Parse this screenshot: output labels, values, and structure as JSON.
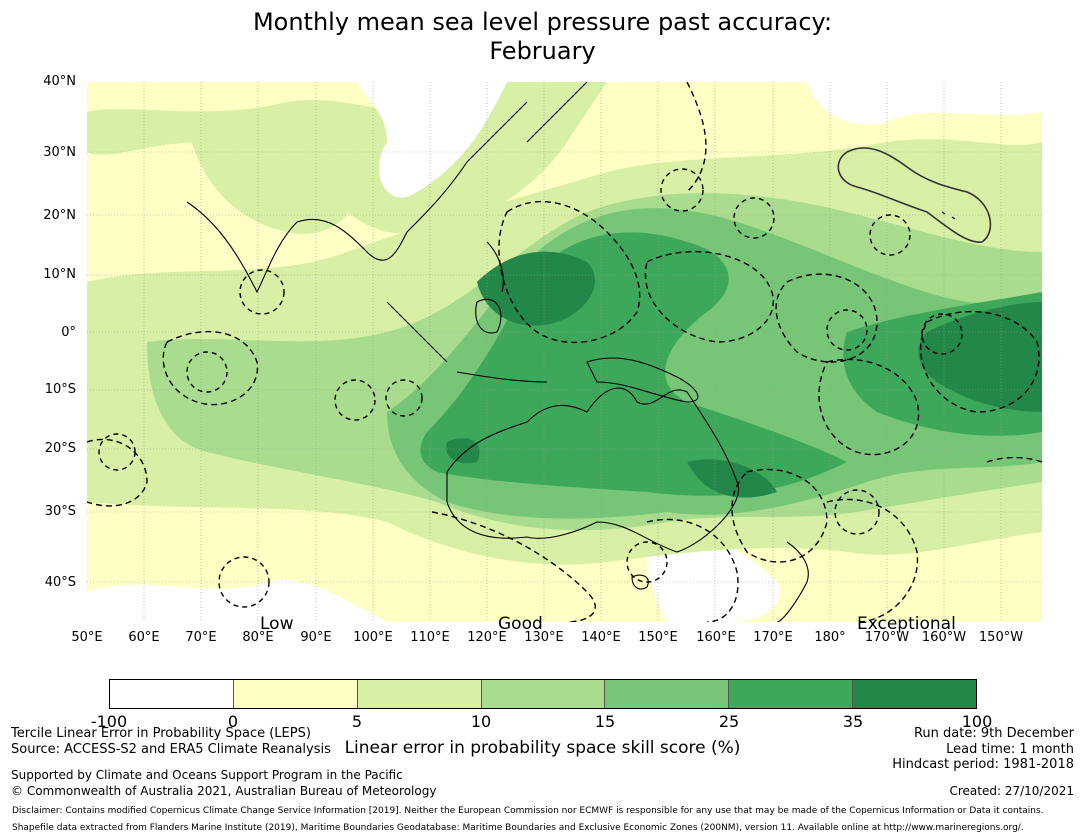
{
  "title": {
    "line1": "Monthly mean sea level pressure past accuracy:",
    "line2": "February"
  },
  "map": {
    "lat_labels": [
      "40°N",
      "30°N",
      "20°N",
      "10°N",
      "0°",
      "10°S",
      "20°S",
      "30°S",
      "40°S"
    ],
    "lon_labels": [
      "50°E",
      "60°E",
      "70°E",
      "80°E",
      "90°E",
      "100°E",
      "110°E",
      "120°E",
      "130°E",
      "140°E",
      "150°E",
      "160°E",
      "170°E",
      "180°",
      "170°W",
      "160°W",
      "150°W"
    ],
    "category_labels": {
      "low": "Low",
      "good": "Good",
      "exceptional": "Exceptional"
    }
  },
  "colorbar": {
    "colors": [
      "#ffffff",
      "#ffffc5",
      "#d8f0a5",
      "#a9dc8e",
      "#77c678",
      "#3ea85a",
      "#23874a"
    ],
    "ticks": [
      "-100",
      "0",
      "5",
      "10",
      "15",
      "25",
      "35",
      "100"
    ],
    "label": "Linear error in probability space skill score (%)"
  },
  "footer": {
    "method": "Tercile Linear Error in Probability Space (LEPS)",
    "source": "Source: ACCESS-S2 and ERA5 Climate Reanalysis",
    "support": "Supported by Climate and Oceans Support Program in the Pacific",
    "copyright": "© Commonwealth of Australia 2021, Australian Bureau of Meteorology",
    "run_date": "Run date: 9th December",
    "lead_time": "Lead time: 1 month",
    "hindcast": "Hindcast period: 1981-2018",
    "created": "Created: 27/10/2021",
    "disclaimer": "Disclaimer: Contains modified Copernicus Climate Change Service Information [2019]. Neither the European Commission nor ECMWF is responsible for any use that may be made of the Copernicus Information or Data it contains.",
    "shapefile": "Shapefile data extracted from Flanders Marine Institute (2019), Maritime Boundaries Geodatabase: Maritime Boundaries and Exclusive Economic Zones (200NM), version 11. Available online at http://www.marineregions.org/."
  }
}
